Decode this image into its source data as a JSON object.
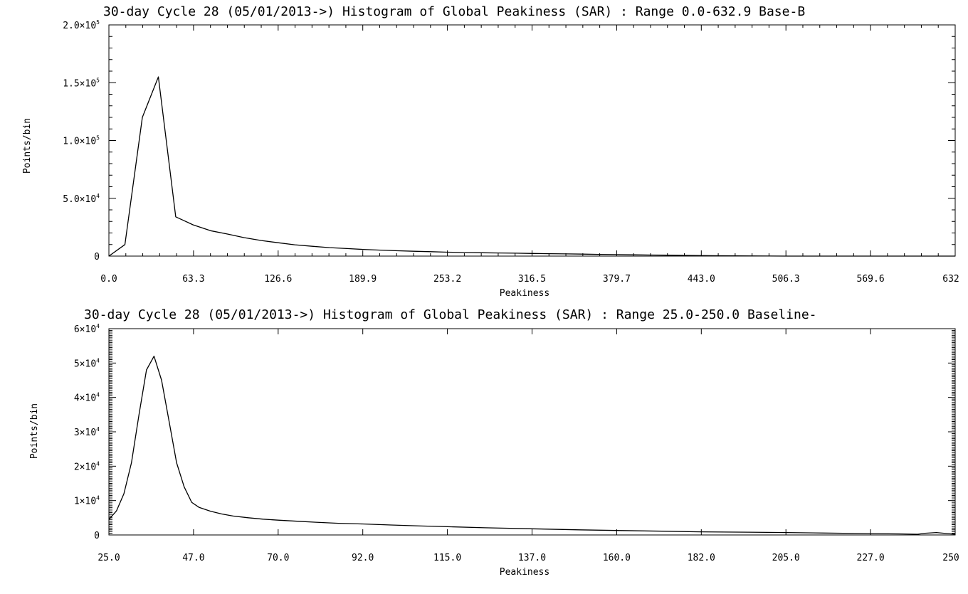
{
  "chart_data": [
    {
      "type": "line",
      "title": "30-day Cycle 28 (05/01/2013->) Histogram of Global Peakiness (SAR) :  Range 0.0-632.9 Base-B",
      "xlabel": "Peakiness",
      "ylabel": "Points/bin",
      "xlim": [
        0.0,
        632.9
      ],
      "ylim": [
        0,
        200000
      ],
      "x_tick_labels": [
        "0.0",
        "63.3",
        "126.6",
        "189.9",
        "253.2",
        "316.5",
        "379.7",
        "443.0",
        "506.3",
        "569.6",
        "632"
      ],
      "y_ticks": [
        {
          "value": 0,
          "label": "0"
        },
        {
          "value": 50000,
          "label": "5.0×10",
          "exp": "4"
        },
        {
          "value": 100000,
          "label": "1.0×10",
          "exp": "5"
        },
        {
          "value": 150000,
          "label": "1.5×10",
          "exp": "5"
        },
        {
          "value": 200000,
          "label": "2.0×10",
          "exp": "5"
        }
      ],
      "series": [
        {
          "x": [
            0,
            12,
            25,
            37,
            50,
            63,
            76,
            89,
            101,
            114,
            127,
            139,
            152,
            165,
            178,
            190,
            203,
            216,
            228,
            241,
            253,
            266,
            279,
            291,
            304,
            317,
            329,
            342,
            354,
            367,
            380,
            393,
            405,
            418,
            431,
            443,
            456,
            469,
            481,
            494,
            506,
            519,
            532,
            544,
            557,
            570,
            582,
            595,
            608,
            620,
            632.9
          ],
          "y": [
            0,
            10000,
            120000,
            155000,
            34000,
            27000,
            22000,
            19000,
            16000,
            13500,
            11500,
            9800,
            8500,
            7300,
            6500,
            5800,
            5200,
            4600,
            4200,
            3800,
            3400,
            3100,
            2900,
            2700,
            2500,
            2300,
            2100,
            1900,
            1700,
            1500,
            1300,
            1100,
            900,
            800,
            600,
            450,
            300,
            200,
            100,
            50,
            0,
            0,
            0,
            0,
            0,
            0,
            0,
            0,
            0,
            0,
            0
          ]
        }
      ]
    },
    {
      "type": "line",
      "title": "30-day Cycle 28 (05/01/2013->) Histogram of Global Peakiness (SAR) :  Range 25.0-250.0 Baseline-",
      "xlabel": "Peakiness",
      "ylabel": "Points/bin",
      "xlim": [
        25.0,
        250.0
      ],
      "ylim": [
        0,
        60000
      ],
      "x_tick_labels": [
        "25.0",
        "47.0",
        "70.0",
        "92.0",
        "115.0",
        "137.0",
        "160.0",
        "182.0",
        "205.0",
        "227.0",
        "250"
      ],
      "y_ticks": [
        {
          "value": 0,
          "label": "0"
        },
        {
          "value": 10000,
          "label": "1×10",
          "exp": "4"
        },
        {
          "value": 20000,
          "label": "2×10",
          "exp": "4"
        },
        {
          "value": 30000,
          "label": "3×10",
          "exp": "4"
        },
        {
          "value": 40000,
          "label": "4×10",
          "exp": "4"
        },
        {
          "value": 50000,
          "label": "5×10",
          "exp": "4"
        },
        {
          "value": 60000,
          "label": "6×10",
          "exp": "4"
        }
      ],
      "series": [
        {
          "x": [
            25,
            27,
            29,
            31,
            33,
            35,
            37,
            39,
            41,
            43,
            45,
            47,
            49,
            52,
            55,
            58,
            62,
            66,
            70,
            75,
            80,
            86,
            92,
            100,
            108,
            115,
            125,
            137,
            150,
            160,
            172,
            182,
            195,
            205,
            215,
            227,
            235,
            240,
            242,
            245,
            248,
            250
          ],
          "y": [
            4500,
            7000,
            12000,
            21000,
            35000,
            48000,
            52000,
            45000,
            33000,
            21000,
            14000,
            9500,
            8000,
            6900,
            6100,
            5500,
            5000,
            4600,
            4300,
            4000,
            3700,
            3400,
            3200,
            2900,
            2600,
            2400,
            2100,
            1800,
            1500,
            1300,
            1100,
            900,
            800,
            700,
            550,
            400,
            300,
            200,
            500,
            700,
            400,
            200
          ]
        }
      ]
    }
  ]
}
